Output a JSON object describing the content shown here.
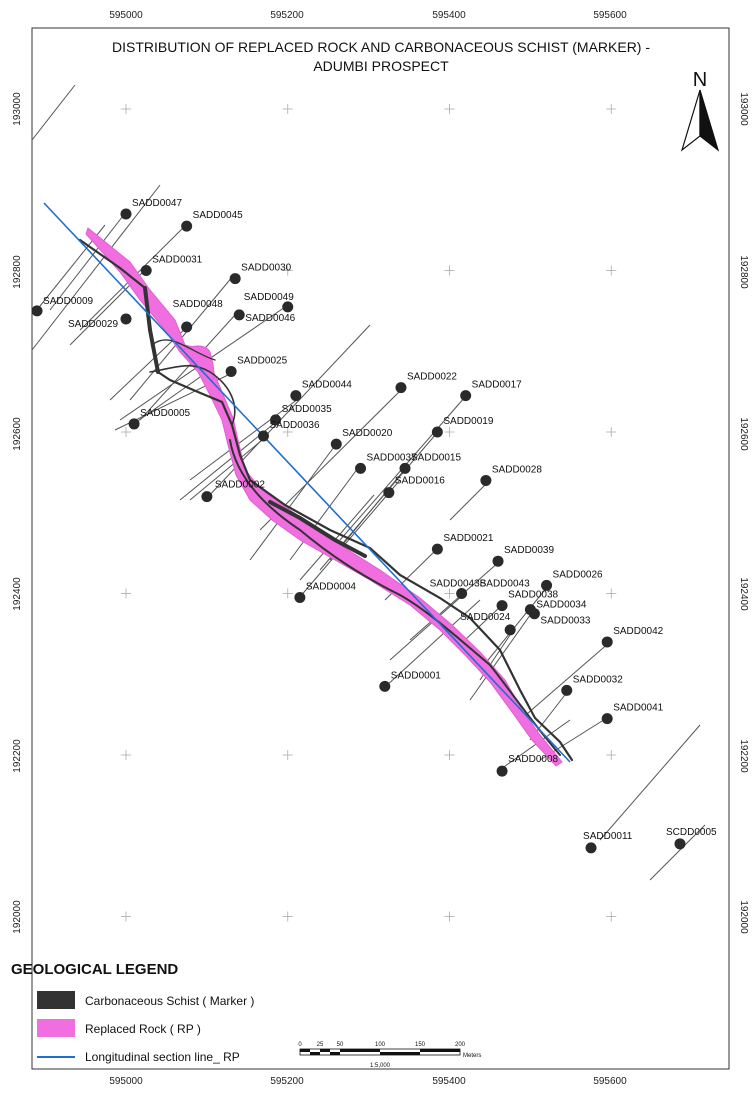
{
  "map": {
    "title_line1": "DISTRIBUTION OF REPLACED ROCK AND CARBONACEOUS SCHIST (MARKER) -",
    "title_line2": "ADUMBI PROSPECT",
    "north_label": "N",
    "x_ticks": [
      "595000",
      "595200",
      "595400",
      "595600"
    ],
    "y_ticks": [
      "193000",
      "192800",
      "192600",
      "192400",
      "192200",
      "192000"
    ],
    "colors": {
      "carbonaceous_schist": "#333333",
      "replaced_rock": "#f06ee0",
      "section_line": "#1f6fd0",
      "drill_trace": "#555555",
      "collar": "#2a2a2a"
    }
  },
  "drillholes": [
    {
      "id": "SADD0047",
      "x": 595000,
      "y": 192870
    },
    {
      "id": "SADD0045",
      "x": 595075,
      "y": 192855
    },
    {
      "id": "SADD0031",
      "x": 595025,
      "y": 192800
    },
    {
      "id": "SADD0030",
      "x": 595135,
      "y": 192790
    },
    {
      "id": "SADD0009",
      "x": 594890,
      "y": 192750
    },
    {
      "id": "SADD0048",
      "x": 595075,
      "y": 192730
    },
    {
      "id": "SADD0049",
      "x": 595200,
      "y": 192755
    },
    {
      "id": "SADD0046",
      "x": 595140,
      "y": 192745
    },
    {
      "id": "SADD0029",
      "x": 595000,
      "y": 192740
    },
    {
      "id": "SADD0025",
      "x": 595130,
      "y": 192675
    },
    {
      "id": "SADD0044",
      "x": 595210,
      "y": 192645
    },
    {
      "id": "SADD0022",
      "x": 595340,
      "y": 192655
    },
    {
      "id": "SADD0017",
      "x": 595420,
      "y": 192645
    },
    {
      "id": "SADD0005",
      "x": 595010,
      "y": 192610
    },
    {
      "id": "SADD0035",
      "x": 595185,
      "y": 192615
    },
    {
      "id": "SADD0036",
      "x": 595170,
      "y": 192595
    },
    {
      "id": "SADD0019",
      "x": 595385,
      "y": 192600
    },
    {
      "id": "SADD0020",
      "x": 595260,
      "y": 192585
    },
    {
      "id": "SADD0037",
      "x": 595290,
      "y": 192555
    },
    {
      "id": "SADD0015",
      "x": 595345,
      "y": 192555
    },
    {
      "id": "SADD0028",
      "x": 595445,
      "y": 192540
    },
    {
      "id": "SADD0016",
      "x": 595325,
      "y": 192525
    },
    {
      "id": "SADD0002",
      "x": 595100,
      "y": 192520
    },
    {
      "id": "SADD0021",
      "x": 595385,
      "y": 192455
    },
    {
      "id": "SADD0039",
      "x": 595460,
      "y": 192440
    },
    {
      "id": "SADD0026",
      "x": 595520,
      "y": 192410
    },
    {
      "id": "SADD0004",
      "x": 595215,
      "y": 192395
    },
    {
      "id": "SADD0043B",
      "x": 595415,
      "y": 192400
    },
    {
      "id": "SADD0043",
      "x": 595415,
      "y": 192400
    },
    {
      "id": "SADD0038",
      "x": 595465,
      "y": 192385
    },
    {
      "id": "SADD0034",
      "x": 595500,
      "y": 192380
    },
    {
      "id": "SADD0024",
      "x": 595475,
      "y": 192355
    },
    {
      "id": "SADD0033",
      "x": 595505,
      "y": 192375
    },
    {
      "id": "SADD0042",
      "x": 595595,
      "y": 192340
    },
    {
      "id": "SADD0001",
      "x": 595320,
      "y": 192285
    },
    {
      "id": "SADD0032",
      "x": 595545,
      "y": 192280
    },
    {
      "id": "SADD0041",
      "x": 595595,
      "y": 192245
    },
    {
      "id": "SADD0008",
      "x": 595465,
      "y": 192180
    },
    {
      "id": "SADD0011",
      "x": 595575,
      "y": 192085
    },
    {
      "id": "SCDD0005",
      "x": 595685,
      "y": 192090
    }
  ],
  "legend": {
    "title": "GEOLOGICAL LEGEND",
    "items": [
      {
        "label": "Carbonaceous Schist ( Marker )"
      },
      {
        "label": "Replaced Rock ( RP )"
      },
      {
        "label": "Longitudinal section line_ RP"
      }
    ]
  },
  "scalebar": {
    "ticks": [
      "0",
      "25",
      "50",
      "100",
      "150",
      "200"
    ],
    "unit": "Meters",
    "ratio": "1:5,000"
  }
}
